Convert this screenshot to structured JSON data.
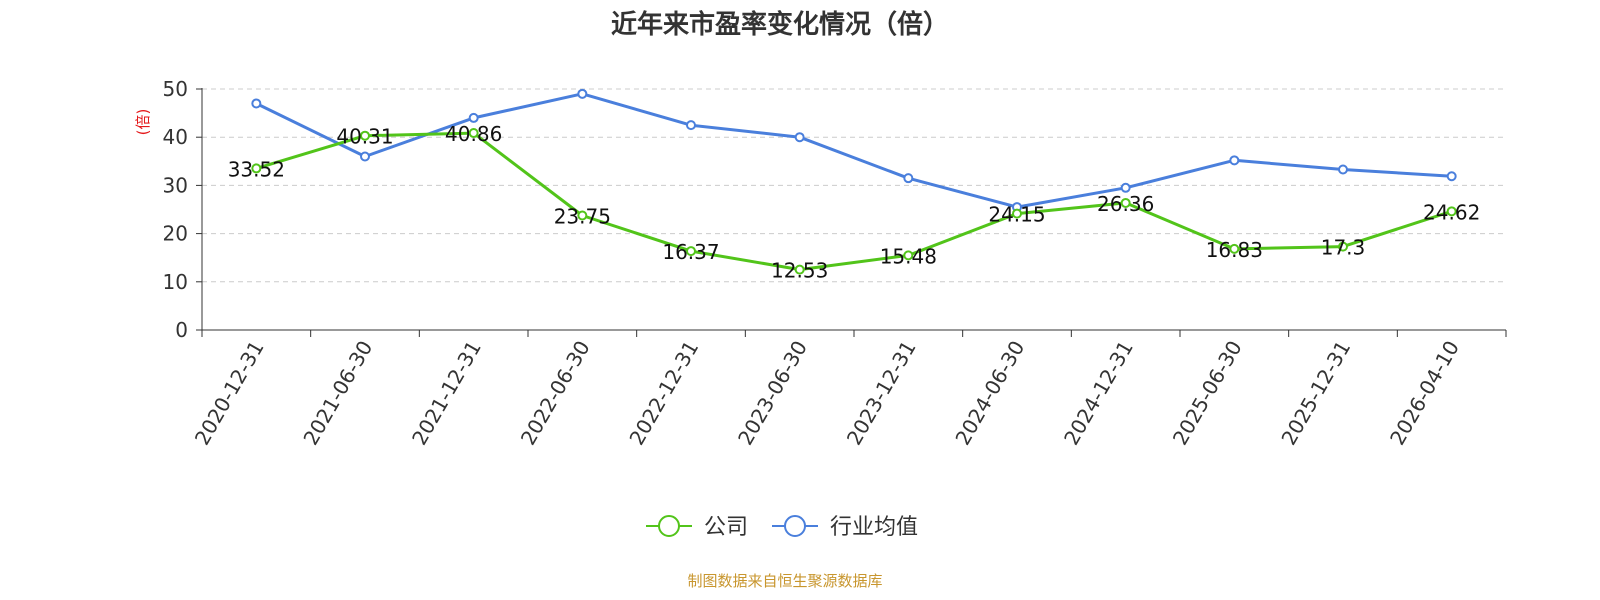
{
  "chart_data": {
    "type": "line",
    "title": "近年来市盈率变化情况（倍）",
    "ylabel": "(倍)",
    "xlabel": "",
    "ylim": [
      0,
      50
    ],
    "yticks": [
      0,
      10,
      20,
      30,
      40,
      50
    ],
    "grid": true,
    "legend_position": "bottom",
    "categories": [
      "2020-12-31",
      "2021-06-30",
      "2021-12-31",
      "2022-06-30",
      "2022-12-31",
      "2023-06-30",
      "2023-12-31",
      "2024-06-30",
      "2024-12-31",
      "2025-06-30",
      "2025-12-31",
      "2026-04-10"
    ],
    "series": [
      {
        "name": "公司",
        "color": "#52c41a",
        "values": [
          33.52,
          40.31,
          40.86,
          23.75,
          16.37,
          12.53,
          15.48,
          24.15,
          26.36,
          16.83,
          17.3,
          24.62
        ],
        "labels": [
          "33.52",
          "40.31",
          "40.86",
          "23.75",
          "16.37",
          "12.53",
          "15.48",
          "24.15",
          "26.36",
          "16.83",
          "17.3",
          "24.62"
        ]
      },
      {
        "name": "行业均值",
        "color": "#4a7fdc",
        "values": [
          47.0,
          36.0,
          44.0,
          49.0,
          42.5,
          40.0,
          31.5,
          25.5,
          29.5,
          35.2,
          33.3,
          31.9
        ]
      }
    ],
    "source": "制图数据来自恒生聚源数据库"
  }
}
